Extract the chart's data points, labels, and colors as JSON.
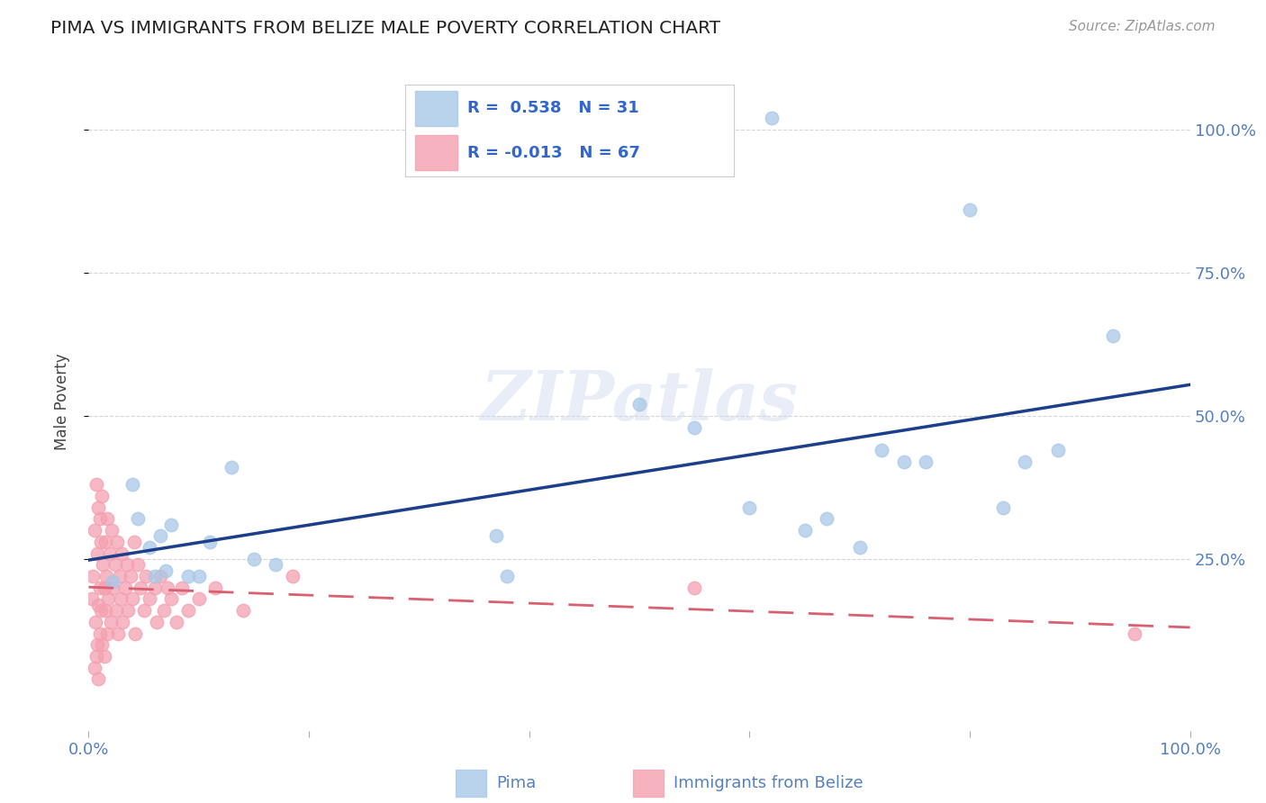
{
  "title": "PIMA VS IMMIGRANTS FROM BELIZE MALE POVERTY CORRELATION CHART",
  "source": "Source: ZipAtlas.com",
  "ylabel_label": "Male Poverty",
  "xlim": [
    0.0,
    1.0
  ],
  "ylim": [
    -0.05,
    1.1
  ],
  "r1": 0.538,
  "n1": 31,
  "r2": -0.013,
  "n2": 67,
  "blue_scatter_color": "#a8c8e8",
  "pink_scatter_color": "#f4a0b0",
  "blue_line_color": "#1c3f8c",
  "pink_line_color": "#d86070",
  "bg_color": "#ffffff",
  "grid_color": "#cccccc",
  "title_color": "#222222",
  "axis_label_color": "#444444",
  "tick_color": "#5580c0",
  "legend_text_color": "#3366cc",
  "legend_label1": "Pima",
  "legend_label2": "Immigrants from Belize",
  "pima_x": [
    0.022,
    0.04,
    0.045,
    0.055,
    0.06,
    0.065,
    0.07,
    0.075,
    0.09,
    0.1,
    0.11,
    0.13,
    0.15,
    0.17,
    0.37,
    0.38,
    0.5,
    0.55,
    0.6,
    0.62,
    0.65,
    0.67,
    0.7,
    0.72,
    0.74,
    0.76,
    0.8,
    0.83,
    0.85,
    0.88,
    0.93
  ],
  "pima_y": [
    0.21,
    0.38,
    0.32,
    0.27,
    0.22,
    0.29,
    0.23,
    0.31,
    0.22,
    0.22,
    0.28,
    0.41,
    0.25,
    0.24,
    0.29,
    0.22,
    0.52,
    0.48,
    0.34,
    1.02,
    0.3,
    0.32,
    0.27,
    0.44,
    0.42,
    0.42,
    0.86,
    0.34,
    0.42,
    0.44,
    0.64
  ],
  "belize_x": [
    0.003,
    0.004,
    0.005,
    0.005,
    0.006,
    0.007,
    0.007,
    0.008,
    0.008,
    0.009,
    0.009,
    0.009,
    0.01,
    0.01,
    0.01,
    0.011,
    0.011,
    0.012,
    0.012,
    0.013,
    0.014,
    0.014,
    0.015,
    0.015,
    0.016,
    0.017,
    0.017,
    0.018,
    0.019,
    0.02,
    0.021,
    0.022,
    0.024,
    0.025,
    0.026,
    0.027,
    0.028,
    0.029,
    0.03,
    0.031,
    0.033,
    0.035,
    0.036,
    0.038,
    0.04,
    0.041,
    0.042,
    0.045,
    0.047,
    0.05,
    0.052,
    0.055,
    0.06,
    0.062,
    0.065,
    0.068,
    0.072,
    0.075,
    0.08,
    0.085,
    0.09,
    0.1,
    0.115,
    0.14,
    0.185,
    0.55,
    0.95
  ],
  "belize_y": [
    0.18,
    0.22,
    0.06,
    0.3,
    0.14,
    0.38,
    0.08,
    0.26,
    0.1,
    0.34,
    0.17,
    0.04,
    0.32,
    0.2,
    0.12,
    0.28,
    0.16,
    0.36,
    0.1,
    0.24,
    0.2,
    0.08,
    0.28,
    0.16,
    0.22,
    0.12,
    0.32,
    0.18,
    0.26,
    0.14,
    0.3,
    0.2,
    0.24,
    0.16,
    0.28,
    0.12,
    0.22,
    0.18,
    0.26,
    0.14,
    0.2,
    0.24,
    0.16,
    0.22,
    0.18,
    0.28,
    0.12,
    0.24,
    0.2,
    0.16,
    0.22,
    0.18,
    0.2,
    0.14,
    0.22,
    0.16,
    0.2,
    0.18,
    0.14,
    0.2,
    0.16,
    0.18,
    0.2,
    0.16,
    0.22,
    0.2,
    0.12
  ]
}
